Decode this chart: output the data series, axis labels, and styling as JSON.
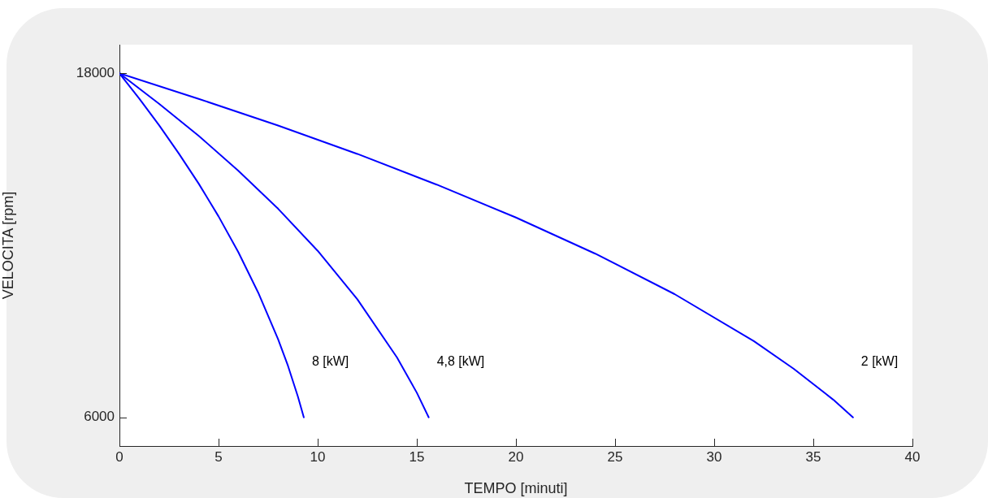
{
  "chart_data": {
    "type": "line",
    "xlabel": "TEMPO [minuti]",
    "ylabel": "VELOCITA [rpm]",
    "xlim": [
      0,
      40
    ],
    "xticks": [
      0,
      5,
      10,
      15,
      20,
      25,
      30,
      35,
      40
    ],
    "ylim": [
      5000,
      19000
    ],
    "yticks": [
      6000,
      18000
    ],
    "grid": false,
    "legend": false,
    "marker": "none",
    "line_style": "solid",
    "series": [
      {
        "name": "8 [kW]",
        "color": "#0000ff",
        "x": [
          0,
          1,
          2,
          3,
          4,
          5,
          6,
          7,
          8,
          8.5,
          9,
          9.3
        ],
        "values": [
          18000,
          17120,
          16190,
          15200,
          14150,
          13010,
          11760,
          10350,
          8730,
          7800,
          6730,
          6000
        ]
      },
      {
        "name": "4,8 [kW]",
        "color": "#0000ff",
        "x": [
          0,
          2,
          4,
          6,
          8,
          10,
          12,
          14,
          15,
          15.6
        ],
        "values": [
          18000,
          16940,
          15820,
          14600,
          13280,
          11810,
          10120,
          8090,
          6860,
          6000
        ]
      },
      {
        "name": "2 [kW]",
        "color": "#0000ff",
        "x": [
          0,
          4,
          8,
          12,
          16,
          20,
          24,
          28,
          32,
          34,
          36,
          37
        ],
        "values": [
          18000,
          17110,
          16180,
          15190,
          14120,
          12970,
          11710,
          10300,
          8660,
          7700,
          6620,
          6000
        ]
      }
    ]
  }
}
